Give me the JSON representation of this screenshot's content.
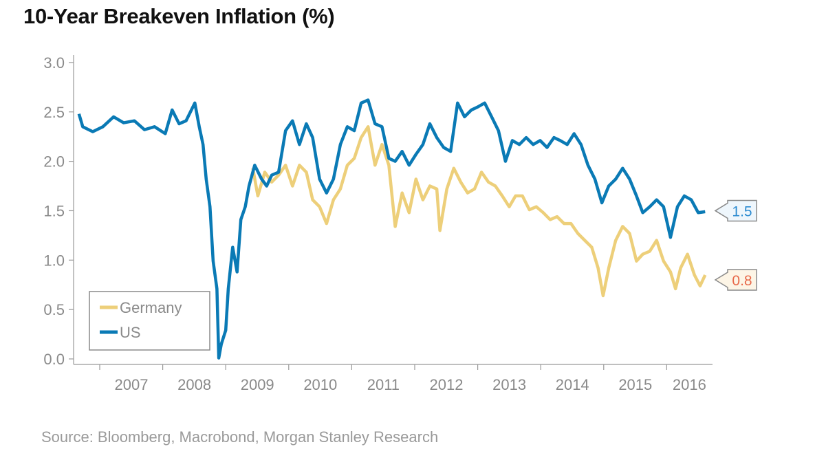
{
  "chart_data": {
    "type": "line",
    "title": "10-Year Breakeven Inflation (%)",
    "source": "Source: Bloomberg, Macrobond, Morgan Stanley Research",
    "xlabel": "",
    "ylabel": "",
    "xlim": [
      2006.6,
      2016.75
    ],
    "ylim": [
      0,
      3.0
    ],
    "yticks": [
      "0.0",
      "0.5",
      "1.0",
      "1.5",
      "2.0",
      "2.5",
      "3.0"
    ],
    "ytick_values": [
      0,
      0.5,
      1.0,
      1.5,
      2.0,
      2.5,
      3.0
    ],
    "xticks": [
      "2007",
      "2008",
      "2009",
      "2010",
      "2011",
      "2012",
      "2013",
      "2014",
      "2015",
      "2016"
    ],
    "grid": false,
    "legend_position": "bottom-left",
    "series": [
      {
        "name": "Germany",
        "color": "#EDCF7A",
        "end_label": "0.8",
        "end_label_color": "#E8694A",
        "end_label_bg": "#FDF5E6",
        "points": [
          [
            2009.43,
            1.93
          ],
          [
            2009.51,
            1.65
          ],
          [
            2009.62,
            1.89
          ],
          [
            2009.73,
            1.79
          ],
          [
            2009.84,
            1.86
          ],
          [
            2009.95,
            1.96
          ],
          [
            2010.06,
            1.75
          ],
          [
            2010.17,
            1.96
          ],
          [
            2010.28,
            1.89
          ],
          [
            2010.38,
            1.61
          ],
          [
            2010.49,
            1.54
          ],
          [
            2010.6,
            1.37
          ],
          [
            2010.71,
            1.61
          ],
          [
            2010.82,
            1.72
          ],
          [
            2010.93,
            1.96
          ],
          [
            2011.04,
            2.03
          ],
          [
            2011.15,
            2.24
          ],
          [
            2011.26,
            2.35
          ],
          [
            2011.37,
            1.96
          ],
          [
            2011.48,
            2.17
          ],
          [
            2011.59,
            1.96
          ],
          [
            2011.69,
            1.34
          ],
          [
            2011.8,
            1.68
          ],
          [
            2011.91,
            1.48
          ],
          [
            2012.02,
            1.82
          ],
          [
            2012.13,
            1.61
          ],
          [
            2012.24,
            1.75
          ],
          [
            2012.35,
            1.72
          ],
          [
            2012.4,
            1.3
          ],
          [
            2012.51,
            1.72
          ],
          [
            2012.62,
            1.93
          ],
          [
            2012.73,
            1.79
          ],
          [
            2012.84,
            1.68
          ],
          [
            2012.95,
            1.72
          ],
          [
            2013.06,
            1.89
          ],
          [
            2013.17,
            1.79
          ],
          [
            2013.28,
            1.75
          ],
          [
            2013.39,
            1.65
          ],
          [
            2013.5,
            1.54
          ],
          [
            2013.6,
            1.65
          ],
          [
            2013.71,
            1.65
          ],
          [
            2013.82,
            1.51
          ],
          [
            2013.93,
            1.54
          ],
          [
            2014.04,
            1.48
          ],
          [
            2014.15,
            1.41
          ],
          [
            2014.26,
            1.44
          ],
          [
            2014.37,
            1.37
          ],
          [
            2014.48,
            1.37
          ],
          [
            2014.59,
            1.27
          ],
          [
            2014.7,
            1.2
          ],
          [
            2014.81,
            1.13
          ],
          [
            2014.91,
            0.92
          ],
          [
            2014.99,
            0.64
          ],
          [
            2015.08,
            0.92
          ],
          [
            2015.19,
            1.2
          ],
          [
            2015.3,
            1.34
          ],
          [
            2015.41,
            1.27
          ],
          [
            2015.52,
            0.99
          ],
          [
            2015.62,
            1.06
          ],
          [
            2015.73,
            1.09
          ],
          [
            2015.84,
            1.2
          ],
          [
            2015.95,
            0.99
          ],
          [
            2016.06,
            0.88
          ],
          [
            2016.14,
            0.71
          ],
          [
            2016.22,
            0.92
          ],
          [
            2016.33,
            1.06
          ],
          [
            2016.44,
            0.85
          ],
          [
            2016.53,
            0.74
          ],
          [
            2016.61,
            0.85
          ]
        ]
      },
      {
        "name": "US",
        "color": "#0A7AB5",
        "end_label": "1.5",
        "end_label_color": "#2A8AD0",
        "end_label_bg": "#EEF6FC",
        "points": [
          [
            2006.67,
            2.48
          ],
          [
            2006.73,
            2.35
          ],
          [
            2006.89,
            2.3
          ],
          [
            2007.05,
            2.35
          ],
          [
            2007.22,
            2.45
          ],
          [
            2007.38,
            2.39
          ],
          [
            2007.55,
            2.41
          ],
          [
            2007.71,
            2.32
          ],
          [
            2007.87,
            2.35
          ],
          [
            2008.04,
            2.28
          ],
          [
            2008.15,
            2.52
          ],
          [
            2008.26,
            2.38
          ],
          [
            2008.37,
            2.41
          ],
          [
            2008.51,
            2.59
          ],
          [
            2008.58,
            2.35
          ],
          [
            2008.64,
            2.17
          ],
          [
            2008.69,
            1.82
          ],
          [
            2008.75,
            1.54
          ],
          [
            2008.8,
            0.99
          ],
          [
            2008.86,
            0.71
          ],
          [
            2008.89,
            0.01
          ],
          [
            2008.93,
            0.15
          ],
          [
            2009.0,
            0.29
          ],
          [
            2009.04,
            0.71
          ],
          [
            2009.11,
            1.13
          ],
          [
            2009.18,
            0.88
          ],
          [
            2009.24,
            1.41
          ],
          [
            2009.31,
            1.54
          ],
          [
            2009.37,
            1.75
          ],
          [
            2009.46,
            1.96
          ],
          [
            2009.57,
            1.82
          ],
          [
            2009.65,
            1.75
          ],
          [
            2009.73,
            1.86
          ],
          [
            2009.84,
            1.89
          ],
          [
            2009.95,
            2.31
          ],
          [
            2010.06,
            2.41
          ],
          [
            2010.17,
            2.17
          ],
          [
            2010.28,
            2.38
          ],
          [
            2010.38,
            2.24
          ],
          [
            2010.49,
            1.82
          ],
          [
            2010.6,
            1.68
          ],
          [
            2010.71,
            1.82
          ],
          [
            2010.82,
            2.17
          ],
          [
            2010.93,
            2.35
          ],
          [
            2011.04,
            2.31
          ],
          [
            2011.15,
            2.59
          ],
          [
            2011.26,
            2.62
          ],
          [
            2011.37,
            2.38
          ],
          [
            2011.48,
            2.35
          ],
          [
            2011.59,
            2.03
          ],
          [
            2011.69,
            2.0
          ],
          [
            2011.8,
            2.1
          ],
          [
            2011.91,
            1.96
          ],
          [
            2012.02,
            2.07
          ],
          [
            2012.13,
            2.17
          ],
          [
            2012.24,
            2.38
          ],
          [
            2012.35,
            2.24
          ],
          [
            2012.46,
            2.14
          ],
          [
            2012.57,
            2.1
          ],
          [
            2012.68,
            2.59
          ],
          [
            2012.79,
            2.45
          ],
          [
            2012.9,
            2.52
          ],
          [
            2013.0,
            2.55
          ],
          [
            2013.11,
            2.59
          ],
          [
            2013.22,
            2.45
          ],
          [
            2013.33,
            2.31
          ],
          [
            2013.44,
            2.0
          ],
          [
            2013.55,
            2.21
          ],
          [
            2013.66,
            2.17
          ],
          [
            2013.77,
            2.24
          ],
          [
            2013.88,
            2.17
          ],
          [
            2013.99,
            2.21
          ],
          [
            2014.1,
            2.14
          ],
          [
            2014.21,
            2.24
          ],
          [
            2014.31,
            2.21
          ],
          [
            2014.42,
            2.17
          ],
          [
            2014.53,
            2.28
          ],
          [
            2014.64,
            2.17
          ],
          [
            2014.75,
            1.96
          ],
          [
            2014.86,
            1.82
          ],
          [
            2014.97,
            1.58
          ],
          [
            2015.08,
            1.75
          ],
          [
            2015.19,
            1.82
          ],
          [
            2015.3,
            1.93
          ],
          [
            2015.41,
            1.82
          ],
          [
            2015.52,
            1.65
          ],
          [
            2015.62,
            1.48
          ],
          [
            2015.73,
            1.54
          ],
          [
            2015.84,
            1.61
          ],
          [
            2015.95,
            1.54
          ],
          [
            2016.06,
            1.23
          ],
          [
            2016.17,
            1.54
          ],
          [
            2016.28,
            1.65
          ],
          [
            2016.39,
            1.61
          ],
          [
            2016.5,
            1.48
          ],
          [
            2016.61,
            1.49
          ]
        ]
      }
    ]
  }
}
